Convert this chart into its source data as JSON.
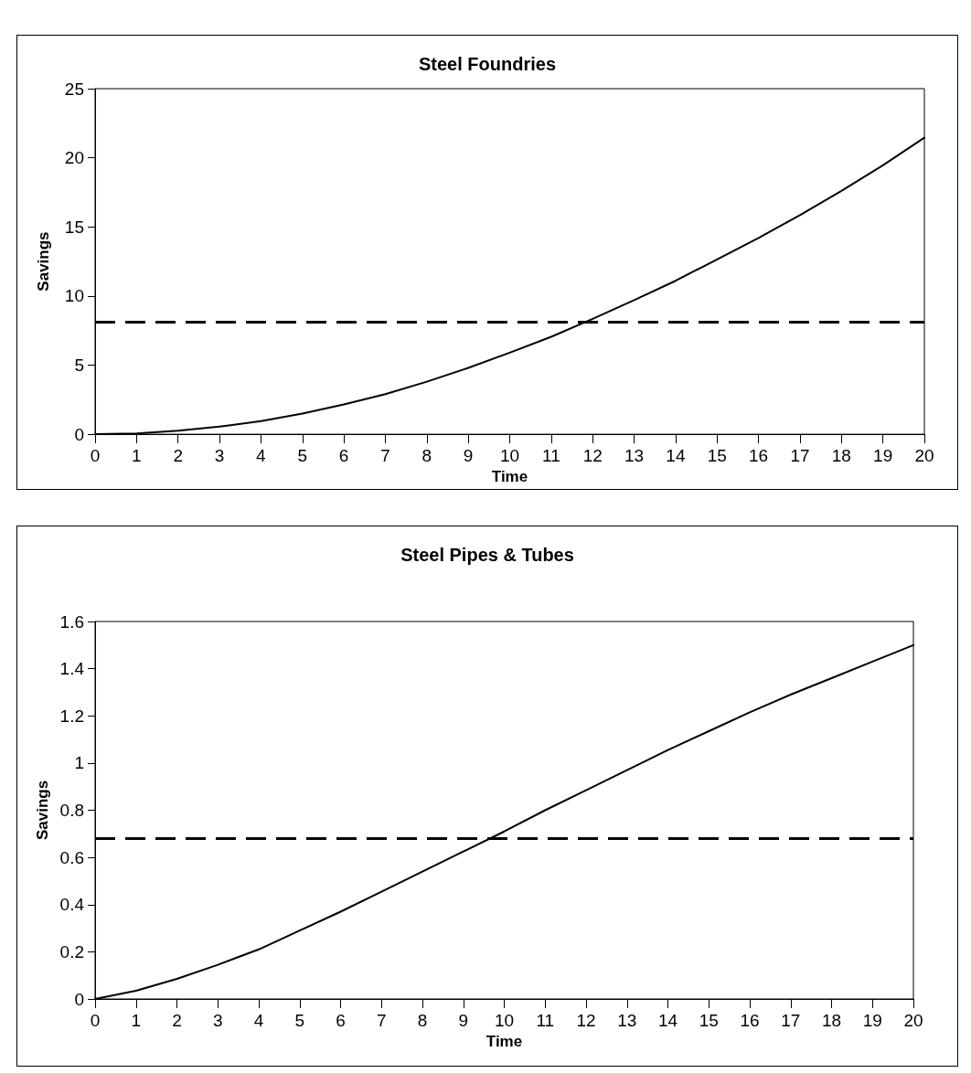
{
  "chart_data": [
    {
      "type": "line",
      "title": "Steel Foundries",
      "xlabel": "Time",
      "ylabel": "Savings",
      "x": [
        0,
        1,
        2,
        3,
        4,
        5,
        6,
        7,
        8,
        9,
        10,
        11,
        12,
        13,
        14,
        15,
        16,
        17,
        18,
        19,
        20
      ],
      "series": [
        {
          "color": "#000000",
          "values": [
            0,
            0.05,
            0.25,
            0.55,
            0.95,
            1.5,
            2.15,
            2.9,
            3.8,
            4.8,
            5.9,
            7.05,
            8.35,
            9.7,
            11.1,
            12.65,
            14.2,
            15.85,
            17.6,
            19.45,
            21.45
          ]
        }
      ],
      "xlim": [
        0,
        20
      ],
      "xticks": [
        0,
        1,
        2,
        3,
        4,
        5,
        6,
        7,
        8,
        9,
        10,
        11,
        12,
        13,
        14,
        15,
        16,
        17,
        18,
        19,
        20
      ],
      "ylim": [
        0,
        25
      ],
      "yticks": [
        0,
        5,
        10,
        15,
        20,
        25
      ],
      "ref_lines": [
        {
          "axis": "y",
          "value": 8.1,
          "color": "#000000",
          "line_style": "dashed"
        }
      ],
      "grid": false,
      "marker": "none",
      "line_style": "solid"
    },
    {
      "type": "line",
      "title": "Steel Pipes & Tubes",
      "xlabel": "Time",
      "ylabel": "Savings",
      "x": [
        0,
        1,
        2,
        3,
        4,
        5,
        6,
        7,
        8,
        9,
        10,
        11,
        12,
        13,
        14,
        15,
        16,
        17,
        18,
        19,
        20
      ],
      "series": [
        {
          "color": "#000000",
          "values": [
            0,
            0.035,
            0.085,
            0.145,
            0.21,
            0.29,
            0.37,
            0.455,
            0.54,
            0.625,
            0.71,
            0.8,
            0.885,
            0.97,
            1.055,
            1.135,
            1.215,
            1.29,
            1.36,
            1.43,
            1.5
          ]
        }
      ],
      "xlim": [
        0,
        20
      ],
      "xticks": [
        0,
        1,
        2,
        3,
        4,
        5,
        6,
        7,
        8,
        9,
        10,
        11,
        12,
        13,
        14,
        15,
        16,
        17,
        18,
        19,
        20
      ],
      "ylim": [
        0,
        1.6
      ],
      "yticks": [
        0,
        0.2,
        0.4,
        0.6,
        0.8,
        1,
        1.2,
        1.4,
        1.6
      ],
      "ref_lines": [
        {
          "axis": "y",
          "value": 0.68,
          "color": "#000000",
          "line_style": "dashed"
        }
      ],
      "grid": false,
      "marker": "none",
      "line_style": "solid"
    }
  ]
}
